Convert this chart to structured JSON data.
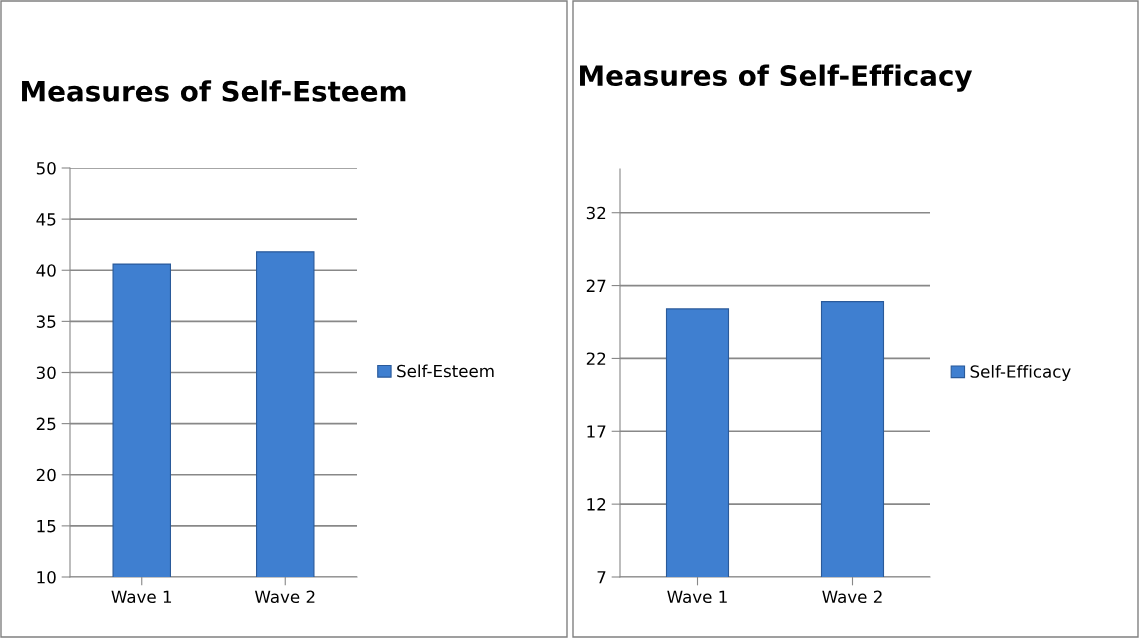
{
  "chart_data": [
    {
      "type": "bar",
      "title": "Measures of Self-Esteem",
      "categories": [
        "Wave 1",
        "Wave 2"
      ],
      "series": [
        {
          "name": "Self-Esteem",
          "color": "#3f7fd0",
          "values": [
            40.6,
            41.8
          ]
        }
      ],
      "ylim": [
        10,
        50
      ],
      "yticks": [
        10,
        15,
        20,
        25,
        30,
        35,
        40,
        45,
        50
      ],
      "grid": "y",
      "legend": "right"
    },
    {
      "type": "bar",
      "title": "Measures of Self-Efficacy",
      "categories": [
        "Wave 1",
        "Wave 2"
      ],
      "series": [
        {
          "name": "Self-Efficacy",
          "color": "#3f7fd0",
          "values": [
            25.4,
            25.9
          ]
        }
      ],
      "ylim": [
        7,
        35
      ],
      "yticks": [
        7,
        12,
        17,
        22,
        27,
        32
      ],
      "grid": "y",
      "legend": "right"
    }
  ]
}
